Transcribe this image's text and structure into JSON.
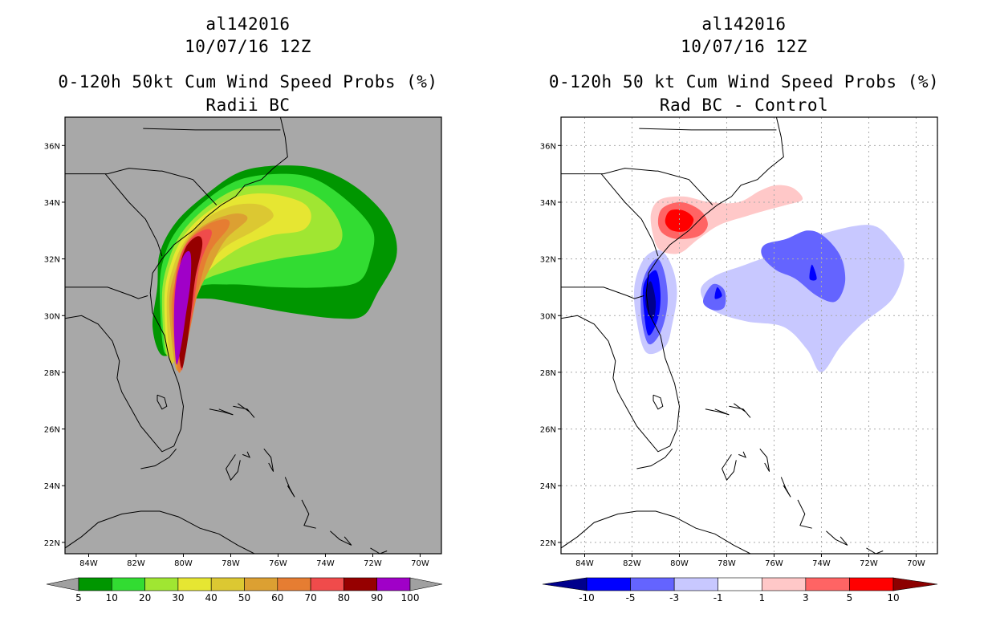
{
  "left_panel": {
    "storm_id": "al142016",
    "datetime": "10/07/16 12Z",
    "product": "0-120h 50kt Cum Wind Speed Probs (%)",
    "subtitle": "Radii BC"
  },
  "right_panel": {
    "storm_id": "al142016",
    "datetime": "10/07/16 12Z",
    "product": "0-120h 50 kt Cum Wind Speed Probs (%)",
    "subtitle": "Rad BC - Control"
  },
  "map": {
    "x_ticks": [
      "84W",
      "82W",
      "80W",
      "78W",
      "76W",
      "74W",
      "72W",
      "70W"
    ],
    "y_ticks": [
      "22N",
      "24N",
      "26N",
      "28N",
      "30N",
      "32N",
      "34N",
      "36N"
    ],
    "lon_range": [
      -85,
      -69.1
    ],
    "lat_range": [
      21.6,
      37.0
    ]
  },
  "chart_data": [
    {
      "type": "heatmap",
      "title": "0-120h 50kt Cum Wind Speed Probs (%)",
      "subtitle": "Radii BC",
      "units": "%",
      "legend_levels": [
        "5",
        "10",
        "20",
        "30",
        "40",
        "50",
        "60",
        "70",
        "80",
        "90",
        "100"
      ],
      "legend_colors": [
        "#009600",
        "#32dc32",
        "#a0e632",
        "#e6e632",
        "#dcc832",
        "#dca032",
        "#e67d32",
        "#f04b4b",
        "#960000",
        "#a000c8"
      ],
      "below_color": "#a0a0a0",
      "above_color": "#a0a0a0",
      "background_color": "#a8a8a8",
      "contours": [
        {
          "level": 5,
          "color": "#009600",
          "pts": [
            [
              -81.1,
              31.0
            ],
            [
              -81.0,
              32.2
            ],
            [
              -80.3,
              33.3
            ],
            [
              -79.0,
              34.3
            ],
            [
              -77.5,
              35.1
            ],
            [
              -75.6,
              35.3
            ],
            [
              -74.0,
              35.1
            ],
            [
              -72.5,
              34.4
            ],
            [
              -71.3,
              33.3
            ],
            [
              -71.0,
              32.1
            ],
            [
              -71.8,
              30.8
            ],
            [
              -72.4,
              30.0
            ],
            [
              -73.5,
              29.9
            ],
            [
              -75.5,
              30.1
            ],
            [
              -77.5,
              30.4
            ],
            [
              -79.0,
              30.6
            ],
            [
              -80.0,
              30.4
            ],
            [
              -80.1,
              29.0
            ],
            [
              -80.9,
              28.6
            ],
            [
              -81.3,
              29.6
            ]
          ]
        },
        {
          "level": 10,
          "color": "#32dc32",
          "pts": [
            [
              -81.0,
              30.9
            ],
            [
              -80.8,
              32.1
            ],
            [
              -80.2,
              33.1
            ],
            [
              -79.0,
              34.1
            ],
            [
              -77.6,
              34.8
            ],
            [
              -75.8,
              35.0
            ],
            [
              -74.4,
              34.8
            ],
            [
              -73.0,
              34.0
            ],
            [
              -72.0,
              33.0
            ],
            [
              -72.1,
              32.0
            ],
            [
              -72.6,
              31.2
            ],
            [
              -74.0,
              31.0
            ],
            [
              -76.0,
              31.0
            ],
            [
              -78.0,
              31.1
            ],
            [
              -79.6,
              30.9
            ],
            [
              -80.2,
              29.4
            ],
            [
              -80.8,
              28.7
            ]
          ]
        },
        {
          "level": 20,
          "color": "#a0e632",
          "pts": [
            [
              -80.9,
              30.7
            ],
            [
              -80.6,
              32.0
            ],
            [
              -80.0,
              33.0
            ],
            [
              -78.9,
              33.9
            ],
            [
              -77.6,
              34.5
            ],
            [
              -76.0,
              34.6
            ],
            [
              -74.8,
              34.4
            ],
            [
              -73.8,
              33.8
            ],
            [
              -73.3,
              33.0
            ],
            [
              -73.5,
              32.4
            ],
            [
              -74.4,
              32.2
            ],
            [
              -76.0,
              32.0
            ],
            [
              -78.0,
              31.6
            ],
            [
              -79.5,
              31.0
            ],
            [
              -80.1,
              29.5
            ],
            [
              -80.7,
              28.6
            ]
          ]
        },
        {
          "level": 30,
          "color": "#e6e632",
          "pts": [
            [
              -80.8,
              30.6
            ],
            [
              -80.5,
              31.9
            ],
            [
              -79.9,
              32.9
            ],
            [
              -78.9,
              33.7
            ],
            [
              -77.7,
              34.2
            ],
            [
              -76.4,
              34.3
            ],
            [
              -75.0,
              34.0
            ],
            [
              -74.6,
              33.5
            ],
            [
              -75.0,
              33.0
            ],
            [
              -76.4,
              32.8
            ],
            [
              -78.0,
              32.2
            ],
            [
              -79.3,
              31.2
            ],
            [
              -80.0,
              29.7
            ],
            [
              -80.6,
              28.5
            ]
          ]
        },
        {
          "level": 40,
          "color": "#dcc832",
          "pts": [
            [
              -80.7,
              30.5
            ],
            [
              -80.4,
              31.8
            ],
            [
              -79.8,
              32.8
            ],
            [
              -78.9,
              33.5
            ],
            [
              -77.8,
              33.9
            ],
            [
              -76.7,
              33.9
            ],
            [
              -76.2,
              33.5
            ],
            [
              -77.0,
              33.0
            ],
            [
              -78.4,
              32.3
            ],
            [
              -79.2,
              31.2
            ],
            [
              -79.9,
              29.7
            ],
            [
              -80.5,
              28.3
            ]
          ]
        },
        {
          "level": 50,
          "color": "#dca032",
          "pts": [
            [
              -80.6,
              30.4
            ],
            [
              -80.3,
              31.7
            ],
            [
              -79.8,
              32.7
            ],
            [
              -78.9,
              33.3
            ],
            [
              -77.8,
              33.6
            ],
            [
              -77.3,
              33.4
            ],
            [
              -78.2,
              32.7
            ],
            [
              -78.8,
              31.8
            ],
            [
              -79.5,
              30.5
            ],
            [
              -79.9,
              29.0
            ],
            [
              -80.3,
              28.1
            ]
          ]
        },
        {
          "level": 60,
          "color": "#e67d32",
          "pts": [
            [
              -80.5,
              30.3
            ],
            [
              -80.2,
              31.6
            ],
            [
              -79.8,
              32.6
            ],
            [
              -79.0,
              33.2
            ],
            [
              -78.2,
              33.4
            ],
            [
              -78.1,
              33.1
            ],
            [
              -78.9,
              32.2
            ],
            [
              -79.4,
              30.8
            ],
            [
              -79.8,
              29.2
            ],
            [
              -80.2,
              28.0
            ]
          ]
        },
        {
          "level": 70,
          "color": "#f04b4b",
          "pts": [
            [
              -80.4,
              30.0
            ],
            [
              -80.3,
              31.5
            ],
            [
              -79.9,
              32.5
            ],
            [
              -79.2,
              33.0
            ],
            [
              -78.8,
              32.9
            ],
            [
              -79.3,
              31.8
            ],
            [
              -79.6,
              30.2
            ],
            [
              -79.9,
              28.9
            ],
            [
              -80.1,
              28.1
            ]
          ]
        },
        {
          "level": 80,
          "color": "#960000",
          "pts": [
            [
              -80.3,
              30.0
            ],
            [
              -80.2,
              31.5
            ],
            [
              -79.9,
              32.4
            ],
            [
              -79.4,
              32.8
            ],
            [
              -79.2,
              32.5
            ],
            [
              -79.5,
              31.3
            ],
            [
              -79.7,
              29.9
            ],
            [
              -79.9,
              28.7
            ],
            [
              -80.1,
              28.2
            ]
          ]
        },
        {
          "level": 90,
          "color": "#a000c8",
          "pts": [
            [
              -80.4,
              29.8
            ],
            [
              -80.3,
              31.2
            ],
            [
              -80.0,
              32.1
            ],
            [
              -79.7,
              32.2
            ],
            [
              -79.7,
              31.2
            ],
            [
              -79.9,
              30.0
            ],
            [
              -80.1,
              28.9
            ],
            [
              -80.3,
              28.3
            ]
          ]
        }
      ]
    },
    {
      "type": "heatmap",
      "title": "0-120h 50 kt Cum Wind Speed Probs (%)",
      "subtitle": "Rad BC - Control",
      "units": "%",
      "legend_levels": [
        "-10",
        "-5",
        "-3",
        "-1",
        "1",
        "3",
        "5",
        "10"
      ],
      "legend_colors": [
        "#0000ff",
        "#6464ff",
        "#c8c8ff",
        "#ffffff",
        "#ffc8c8",
        "#ff6464",
        "#ff0000"
      ],
      "below_color": "#00008c",
      "above_color": "#8c0000",
      "background_color": "#ffffff",
      "contours": [
        {
          "level": -1,
          "color": "#c8c8ff",
          "pts": [
            [
              -80.8,
              32.3
            ],
            [
              -80.3,
              31.7
            ],
            [
              -80.1,
              30.8
            ],
            [
              -80.3,
              29.7
            ],
            [
              -80.6,
              28.9
            ],
            [
              -81.4,
              28.7
            ],
            [
              -81.8,
              29.8
            ],
            [
              -81.9,
              31.0
            ],
            [
              -81.5,
              32.0
            ]
          ]
        },
        {
          "level": -1,
          "color": "#c8c8ff",
          "pts": [
            [
              -78.5,
              31.4
            ],
            [
              -77.2,
              31.8
            ],
            [
              -75.6,
              32.3
            ],
            [
              -74.3,
              32.8
            ],
            [
              -72.0,
              33.2
            ],
            [
              -71.0,
              32.6
            ],
            [
              -70.5,
              31.8
            ],
            [
              -71.0,
              30.6
            ],
            [
              -72.3,
              29.7
            ],
            [
              -73.2,
              28.9
            ],
            [
              -74.0,
              28.0
            ],
            [
              -74.6,
              28.8
            ],
            [
              -75.6,
              29.6
            ],
            [
              -77.2,
              29.8
            ],
            [
              -78.6,
              30.2
            ],
            [
              -79.1,
              30.9
            ]
          ]
        },
        {
          "level": -3,
          "color": "#6464ff",
          "pts": [
            [
              -80.9,
              32.0
            ],
            [
              -80.6,
              31.4
            ],
            [
              -80.5,
              30.4
            ],
            [
              -80.8,
              29.4
            ],
            [
              -81.3,
              29.0
            ],
            [
              -81.6,
              29.9
            ],
            [
              -81.6,
              31.0
            ],
            [
              -81.3,
              31.7
            ]
          ]
        },
        {
          "level": -3,
          "color": "#6464ff",
          "pts": [
            [
              -78.6,
              31.1
            ],
            [
              -78.1,
              30.9
            ],
            [
              -78.1,
              30.3
            ],
            [
              -78.6,
              30.2
            ],
            [
              -79.0,
              30.5
            ]
          ]
        },
        {
          "level": -3,
          "color": "#6464ff",
          "pts": [
            [
              -75.5,
              32.7
            ],
            [
              -74.6,
              33.0
            ],
            [
              -73.9,
              32.8
            ],
            [
              -73.2,
              32.1
            ],
            [
              -73.0,
              31.2
            ],
            [
              -73.4,
              30.5
            ],
            [
              -74.2,
              30.7
            ],
            [
              -75.1,
              31.3
            ],
            [
              -75.9,
              31.6
            ],
            [
              -76.5,
              32.1
            ],
            [
              -76.4,
              32.5
            ]
          ]
        },
        {
          "level": -5,
          "color": "#0000ff",
          "pts": [
            [
              -81.0,
              31.6
            ],
            [
              -80.8,
              30.8
            ],
            [
              -80.9,
              29.9
            ],
            [
              -81.3,
              29.3
            ],
            [
              -81.5,
              30.2
            ],
            [
              -81.5,
              31.1
            ]
          ]
        },
        {
          "level": -5,
          "color": "#0000ff",
          "pts": [
            [
              -78.4,
              31.0
            ],
            [
              -78.2,
              30.7
            ],
            [
              -78.5,
              30.6
            ]
          ]
        },
        {
          "level": -5,
          "color": "#0000ff",
          "pts": [
            [
              -74.4,
              31.8
            ],
            [
              -74.2,
              31.3
            ],
            [
              -74.5,
              31.3
            ]
          ]
        },
        {
          "level": -10,
          "color": "#00008c",
          "pts": [
            [
              -81.2,
              31.2
            ],
            [
              -81.0,
              30.5
            ],
            [
              -81.1,
              29.9
            ],
            [
              -81.4,
              30.3
            ],
            [
              -81.4,
              30.9
            ]
          ]
        },
        {
          "level": 1,
          "color": "#ffc8c8",
          "pts": [
            [
              -81.1,
              32.8
            ],
            [
              -81.2,
              33.6
            ],
            [
              -80.8,
              34.1
            ],
            [
              -79.8,
              34.2
            ],
            [
              -78.7,
              34.0
            ],
            [
              -77.5,
              34.0
            ],
            [
              -76.6,
              34.4
            ],
            [
              -75.9,
              34.6
            ],
            [
              -75.2,
              34.5
            ],
            [
              -74.8,
              34.1
            ],
            [
              -75.5,
              33.9
            ],
            [
              -76.4,
              33.7
            ],
            [
              -77.2,
              33.5
            ],
            [
              -78.3,
              33.2
            ],
            [
              -79.2,
              32.7
            ],
            [
              -80.0,
              32.2
            ],
            [
              -80.8,
              32.3
            ]
          ]
        },
        {
          "level": 3,
          "color": "#ff6464",
          "pts": [
            [
              -80.9,
              33.3
            ],
            [
              -80.7,
              33.8
            ],
            [
              -79.9,
              34.0
            ],
            [
              -79.1,
              33.7
            ],
            [
              -78.8,
              33.2
            ],
            [
              -79.2,
              32.8
            ],
            [
              -80.1,
              32.7
            ],
            [
              -80.7,
              32.9
            ]
          ]
        },
        {
          "level": 5,
          "color": "#ff0000",
          "pts": [
            [
              -80.6,
              33.3
            ],
            [
              -80.4,
              33.7
            ],
            [
              -79.8,
              33.7
            ],
            [
              -79.4,
              33.4
            ],
            [
              -79.7,
              33.0
            ],
            [
              -80.3,
              33.0
            ]
          ]
        }
      ]
    }
  ]
}
